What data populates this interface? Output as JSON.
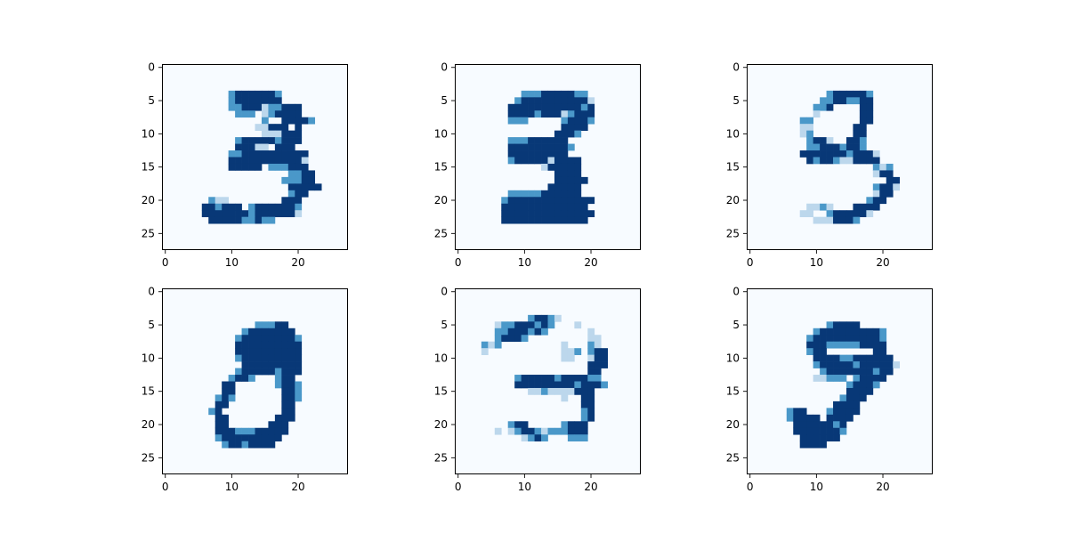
{
  "colors": {
    "colormap": "Blues",
    "cmap_light": "#f7fbff",
    "cmap_dark": "#08306b",
    "axes": "#000000",
    "background": "#ffffff"
  },
  "chart_data": [
    {
      "type": "heatmap",
      "title": "",
      "xlabel": "",
      "ylabel": "",
      "xlim": [
        -0.5,
        27.5
      ],
      "ylim": [
        27.5,
        -0.5
      ],
      "x_ticks": [
        0,
        10,
        20
      ],
      "y_ticks": [
        0,
        5,
        10,
        15,
        20,
        25
      ],
      "x_tick_labels": [
        "0",
        "10",
        "20"
      ],
      "y_tick_labels": [
        "0",
        "5",
        "10",
        "15",
        "20",
        "25"
      ],
      "grid": false,
      "digit_shape": "3",
      "rows": [
        "............................",
        "............................",
        "............................",
        "............................",
        "..........+######+..........",
        "..........+#######..........",
        "..........++###:++###.......",
        "...........+++.:+####.......",
        "...............+..####+.....",
        "..............::###.#.......",
        "...............:::###.......",
        "...........+#####+###.......",
        "...........###::.###........",
        "..........++##########......",
        "..........###########:......",
        "..........#####.+++###......",
        "...................++##.....",
        "..................+++##.....",
        "...................#####....",
        "...................+##......",
        ".......+::........###.......",
        "......##+###.+######+.......",
        "......#######+######:.......",
        ".......#####++#++..........."
      ]
    },
    {
      "type": "heatmap",
      "title": "",
      "xlabel": "",
      "ylabel": "",
      "xlim": [
        -0.5,
        27.5
      ],
      "ylim": [
        27.5,
        -0.5
      ],
      "x_ticks": [
        0,
        10,
        20
      ],
      "y_ticks": [
        0,
        5,
        10,
        15,
        20,
        25
      ],
      "x_tick_labels": [
        "0",
        "10",
        "20"
      ],
      "y_tick_labels": [
        "0",
        "5",
        "10",
        "15",
        "20",
        "25"
      ],
      "grid": false,
      "digit_shape": "3",
      "rows": [
        "............................",
        "............................",
        "............................",
        "............................",
        "..........+++#####++.........",
        ".........+##########:........",
        "........###########+#........",
        "........####+###:+###........",
        "........+++.....+###+........",
        "................####.........",
        "...............###+..........",
        "........+++######............",
        "........#########+...........",
        "........#########............",
        "........+#####:####..........",
        ".............:#####..........",
        "...............####..........",
        "...............#####.........",
        "..............#####..........",
        "........+++++######..........",
        ".......+#############........",
        ".......#############.........",
        ".......##############........",
        ".......#############........."
      ]
    },
    {
      "type": "heatmap",
      "title": "",
      "xlabel": "",
      "ylabel": "",
      "xlim": [
        -0.5,
        27.5
      ],
      "ylim": [
        27.5,
        -0.5
      ],
      "x_ticks": [
        0,
        10,
        20
      ],
      "y_ticks": [
        0,
        5,
        10,
        15,
        20,
        25
      ],
      "x_tick_labels": [
        "0",
        "10",
        "20"
      ],
      "y_tick_labels": [
        "0",
        "5",
        "10",
        "15",
        "20",
        "25"
      ],
      "grid": false,
      "digit_shape": "3",
      "rows": [
        "............................",
        "............................",
        "............................",
        "............................",
        "............+#####+.........",
        "...........++##++##.........",
        "..........++#....##.........",
        "..........:......##.........",
        "........++.......##.........",
        "........::......##..........",
        "........:+......##..........",
        ".........+##:..##+..........",
        ".........++###+##+..........",
        "........#######+###:........",
        ".........#+##+::####........",
        "...................+:+......",
        "...................:##......",
        ".....................##.....",
        "...................+##:.....",
        "...................:##......",
        "..................+##.......",
        ".........::+:...####........",
        "........::..+#####:.........",
        "..........:::###+..........."
      ]
    },
    {
      "type": "heatmap",
      "title": "",
      "xlabel": "",
      "ylabel": "",
      "xlim": [
        -0.5,
        27.5
      ],
      "ylim": [
        27.5,
        -0.5
      ],
      "x_ticks": [
        0,
        10,
        20
      ],
      "y_ticks": [
        0,
        5,
        10,
        15,
        20,
        25
      ],
      "x_tick_labels": [
        "0",
        "10",
        "20"
      ],
      "y_tick_labels": [
        "0",
        "5",
        "10",
        "15",
        "20",
        "25"
      ],
      "grid": false,
      "digit_shape": "8",
      "rows": [
        "............................",
        "............................",
        "............................",
        "............................",
        "............................",
        "..............+++##.........",
        "............+#######........",
        "...........+########+.......",
        "...........##########.......",
        "...........##########.......",
        "...........+#########.......",
        "............#########.......",
        "...........+#####+###.......",
        "..........+##+...+##........",
        ".........##......+##+.......",
        ".........##.......##+.......",
        "........+#+.......##+.......",
        "........##........##........",
        ".......+#.........##........",
        "........##.......###........",
        "........##......###.........",
        "........###+++#####.........",
        "........+#########..........",
        ".........+##+####..........."
      ]
    },
    {
      "type": "heatmap",
      "title": "",
      "xlabel": "",
      "ylabel": "",
      "xlim": [
        -0.5,
        27.5
      ],
      "ylim": [
        27.5,
        -0.5
      ],
      "x_ticks": [
        0,
        10,
        20
      ],
      "y_ticks": [
        0,
        5,
        10,
        15,
        20,
        25
      ],
      "x_tick_labels": [
        "0",
        "10",
        "20"
      ],
      "y_tick_labels": [
        "0",
        "5",
        "10",
        "15",
        "20",
        "25"
      ],
      "grid": false,
      "digit_shape": "3",
      "rows": [
        "............................",
        "............................",
        "............................",
        "............................",
        "...........+##+:.............",
        "......:++###+#+...:.........",
        "......++###+#+......:.......",
        "......+###+.........::......",
        "....+:+.........:...+:......",
        "....:...........::+.+##.....",
        "................::..:##.....",
        "....................###.....",
        "....................##......",
        ".........+#####+####++......",
        ".........#########+###+.....",
        "...........::+::::###.......",
        "................:..##.......",
        "...................##.......",
        "...................+#.......",
        "...................+#.......",
        "........+##.....+###........",
        "......:.:+##+:+++###........",
        "..........:+#+...+++........",
        "............................"
      ]
    },
    {
      "type": "heatmap",
      "title": "",
      "xlabel": "",
      "ylabel": "",
      "xlim": [
        -0.5,
        27.5
      ],
      "ylim": [
        27.5,
        -0.5
      ],
      "x_ticks": [
        0,
        10,
        20
      ],
      "y_ticks": [
        0,
        5,
        10,
        15,
        20,
        25
      ],
      "x_tick_labels": [
        "0",
        "10",
        "20"
      ],
      "y_tick_labels": [
        "0",
        "5",
        "10",
        "15",
        "20",
        "25"
      ],
      "grid": false,
      "digit_shape": "9",
      "rows": [
        "............................",
        "............................",
        "............................",
        "............................",
        "............................",
        "............+####...........",
        "..........+#########+.......",
        ".........+##########+.......",
        ".........###+++++####.......",
        ".........+##.......##.......",
        "..........####++######......",
        "..........+#####+#####:.....",
        "...........+#######+##......",
        "..........::+++.+####.......",
        "...............+###+........",
        "...............####.........",
        "..............+###..........",
        ".............####...........",
        "......+##...+####...........",
        "......+####.####............",
        ".......######+#.............",
        ".......#######+.............",
        "........######..............",
        "........####................"
      ]
    }
  ]
}
